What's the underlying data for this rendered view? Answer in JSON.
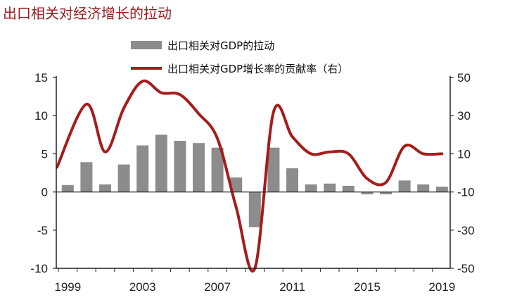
{
  "colors": {
    "title": "#9a1b1e",
    "bar": "#8c8c8c",
    "line": "#a51c1c",
    "axis": "#222222"
  },
  "chart_data": {
    "type": "bar",
    "title": "出口相关对经济增长的拉动",
    "legend": [
      "出口相关对GDP的拉动",
      "出口相关对GDP增长率的贡献率（右）"
    ],
    "legend_placement": "top-center",
    "grid": false,
    "x": [
      1999,
      2000,
      2001,
      2002,
      2003,
      2004,
      2005,
      2006,
      2007,
      2008,
      2009,
      2010,
      2011,
      2012,
      2013,
      2014,
      2015,
      2016,
      2017,
      2018,
      2019
    ],
    "x_tick_labels": [
      "1999",
      "2003",
      "2007",
      "2011",
      "2015",
      "2019"
    ],
    "series": [
      {
        "name": "出口相关对GDP的拉动",
        "type": "bar",
        "axis": "left",
        "values": [
          0.9,
          3.9,
          1.0,
          3.6,
          6.1,
          7.5,
          6.7,
          6.4,
          5.8,
          1.9,
          -4.6,
          5.8,
          3.1,
          1.0,
          1.1,
          0.8,
          -0.3,
          -0.3,
          1.5,
          1.0,
          0.7
        ]
      },
      {
        "name": "出口相关对GDP增长率的贡献率（右）",
        "type": "line",
        "axis": "right",
        "values": [
          3,
          36,
          11,
          34,
          48,
          42,
          41,
          31,
          18,
          -18,
          -50,
          32,
          19,
          10,
          11,
          10,
          -3,
          -5,
          14,
          10,
          10
        ]
      }
    ],
    "y_left": {
      "ylim": [
        -10,
        15
      ],
      "ticks": [
        "15",
        "10",
        "5",
        "0",
        "-5",
        "-10"
      ]
    },
    "y_right": {
      "ylim": [
        -50,
        50
      ],
      "ticks": [
        "50",
        "30",
        "10",
        "-10",
        "-30",
        "-50"
      ]
    }
  }
}
